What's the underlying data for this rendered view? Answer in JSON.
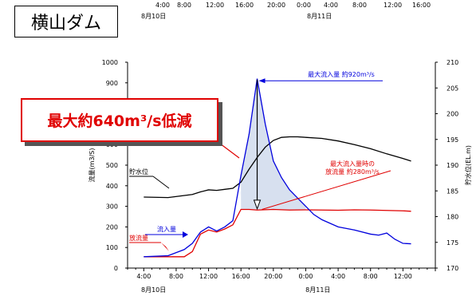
{
  "title": "横山ダム",
  "top_axis": {
    "ticks": [
      "4:00",
      "8:00",
      "12:00",
      "16:00",
      "20:00",
      "0:00",
      "4:00",
      "8:00",
      "12:00",
      "16:00"
    ],
    "dates": [
      "8月10日",
      "8月11日"
    ]
  },
  "callout": {
    "text": "最大約640m³/s低減"
  },
  "chart_data": {
    "type": "line",
    "ylabel": "流量(m3/S)",
    "y2label": "貯水位(EL.m)",
    "ylim": [
      0,
      1000
    ],
    "y2lim": [
      170,
      210
    ],
    "x_ticks": [
      "4:00",
      "8:00",
      "12:00",
      "16:00",
      "20:00",
      "0:00",
      "4:00",
      "8:00",
      "12:00"
    ],
    "x_dates": [
      "8月10日",
      "8月11日"
    ],
    "y_ticks": [
      0,
      100,
      200,
      300,
      400,
      500,
      600,
      700,
      800,
      900,
      1000
    ],
    "y2_ticks": [
      170,
      175,
      180,
      185,
      190,
      195,
      200,
      205,
      210
    ],
    "annotations": {
      "max_inflow": "最大流入量 約920m³/s",
      "outflow_at_max_line1": "最大流入量時の",
      "outflow_at_max_line2": "放流量 約280m³/s",
      "inflow_label": "流入量",
      "outflow_label": "放流量",
      "level_label": "貯水位"
    },
    "series": [
      {
        "name": "流入量",
        "color": "#0000dd",
        "axis": "left",
        "points": [
          [
            0,
            55
          ],
          [
            3,
            60
          ],
          [
            5,
            90
          ],
          [
            6,
            120
          ],
          [
            7,
            175
          ],
          [
            8,
            200
          ],
          [
            9,
            180
          ],
          [
            10,
            200
          ],
          [
            11,
            230
          ],
          [
            12,
            450
          ],
          [
            13,
            650
          ],
          [
            14,
            920
          ],
          [
            15,
            700
          ],
          [
            16,
            520
          ],
          [
            17,
            440
          ],
          [
            18,
            380
          ],
          [
            19,
            340
          ],
          [
            20,
            300
          ],
          [
            21,
            260
          ],
          [
            22,
            235
          ],
          [
            24,
            200
          ],
          [
            26,
            185
          ],
          [
            28,
            165
          ],
          [
            29,
            160
          ],
          [
            30,
            170
          ],
          [
            31,
            140
          ],
          [
            32,
            120
          ],
          [
            33,
            118
          ]
        ]
      },
      {
        "name": "放流量",
        "color": "#e00000",
        "axis": "left",
        "points": [
          [
            0,
            55
          ],
          [
            3,
            55
          ],
          [
            5,
            55
          ],
          [
            6,
            80
          ],
          [
            7,
            165
          ],
          [
            8,
            185
          ],
          [
            9,
            175
          ],
          [
            10,
            190
          ],
          [
            11,
            210
          ],
          [
            12,
            285
          ],
          [
            13,
            285
          ],
          [
            14,
            282
          ],
          [
            16,
            285
          ],
          [
            18,
            282
          ],
          [
            20,
            283
          ],
          [
            22,
            282
          ],
          [
            24,
            281
          ],
          [
            26,
            283
          ],
          [
            28,
            282
          ],
          [
            30,
            280
          ],
          [
            32,
            278
          ],
          [
            33,
            276
          ]
        ]
      },
      {
        "name": "貯水位",
        "color": "#000000",
        "axis": "right",
        "points": [
          [
            0,
            183.8
          ],
          [
            3,
            183.7
          ],
          [
            6,
            184.3
          ],
          [
            7,
            184.8
          ],
          [
            8,
            185.2
          ],
          [
            9,
            185.1
          ],
          [
            10,
            185.3
          ],
          [
            11,
            185.5
          ],
          [
            12,
            186.7
          ],
          [
            13,
            189.2
          ],
          [
            14,
            191.5
          ],
          [
            15,
            193.5
          ],
          [
            16,
            194.8
          ],
          [
            17,
            195.4
          ],
          [
            18,
            195.5
          ],
          [
            19,
            195.5
          ],
          [
            20,
            195.4
          ],
          [
            22,
            195.2
          ],
          [
            24,
            194.7
          ],
          [
            26,
            194.0
          ],
          [
            28,
            193.2
          ],
          [
            30,
            192.2
          ],
          [
            32,
            191.3
          ],
          [
            33,
            190.8
          ]
        ]
      }
    ]
  }
}
